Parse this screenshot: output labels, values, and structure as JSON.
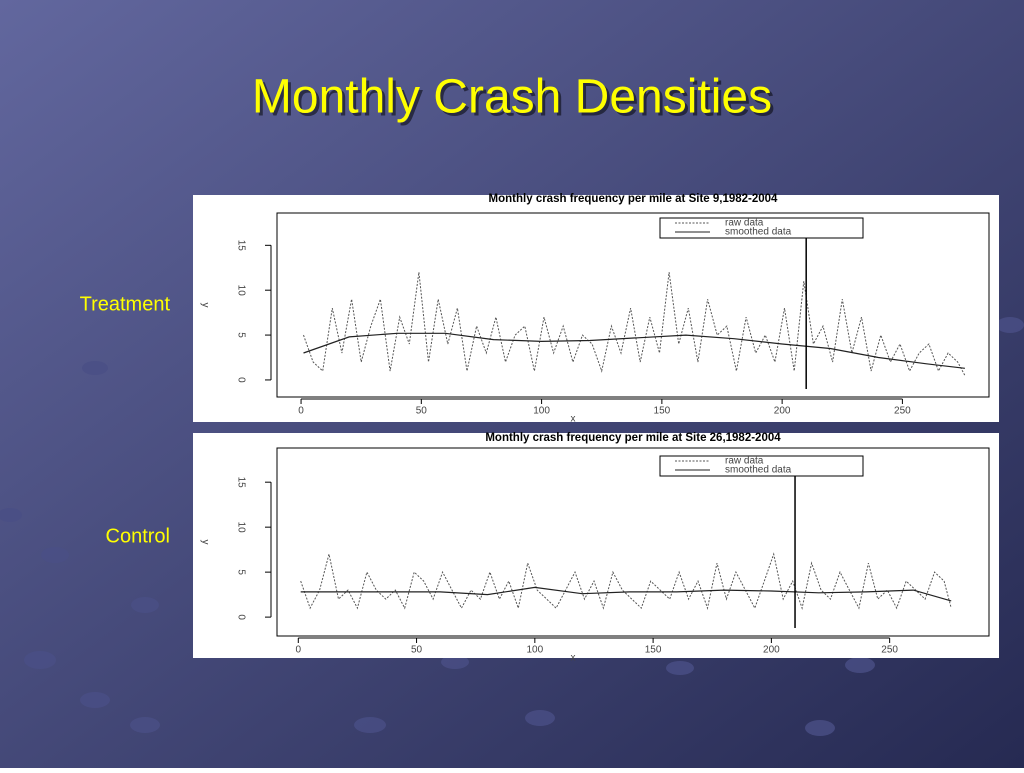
{
  "title": "Monthly Crash Densities",
  "chart_data": [
    {
      "type": "line",
      "panel_label": "Treatment",
      "title": "Monthly crash frequency per mile at Site 9,1982-2004",
      "xlabel": "x",
      "ylabel": "y",
      "xlim": [
        -10,
        286
      ],
      "ylim": [
        -1.9,
        18.6
      ],
      "xticks": [
        0,
        50,
        100,
        150,
        200,
        250
      ],
      "yticks": [
        0,
        5,
        10,
        15
      ],
      "vline": 210,
      "legend": "top-right",
      "series": [
        {
          "name": "raw data",
          "color": "#555555",
          "dash": true,
          "x": [
            1,
            5,
            9,
            13,
            17,
            21,
            25,
            29,
            33,
            37,
            41,
            45,
            49,
            53,
            57,
            61,
            65,
            69,
            73,
            77,
            81,
            85,
            89,
            93,
            97,
            101,
            105,
            109,
            113,
            117,
            121,
            125,
            129,
            133,
            137,
            141,
            145,
            149,
            153,
            157,
            161,
            165,
            169,
            173,
            177,
            181,
            185,
            189,
            193,
            197,
            201,
            205,
            209,
            213,
            217,
            221,
            225,
            229,
            233,
            237,
            241,
            245,
            249,
            253,
            257,
            261,
            265,
            269,
            273,
            276
          ],
          "values": [
            5,
            2,
            1,
            8,
            3,
            9,
            2,
            6,
            9,
            1,
            7,
            4,
            12,
            2,
            9,
            4,
            8,
            1,
            6,
            3,
            7,
            2,
            5,
            6,
            1,
            7,
            3,
            6,
            2,
            5,
            4,
            1,
            6,
            3,
            8,
            2,
            7,
            3,
            12,
            4,
            8,
            2,
            9,
            5,
            6,
            1,
            7,
            3,
            5,
            2,
            8,
            1,
            11,
            4,
            6,
            2,
            9,
            3,
            7,
            1,
            5,
            2,
            4,
            1,
            3,
            4,
            1,
            3,
            2,
            0.5
          ]
        },
        {
          "name": "smoothed data",
          "color": "#222222",
          "dash": false,
          "x": [
            1,
            20,
            40,
            60,
            80,
            100,
            120,
            140,
            160,
            180,
            200,
            220,
            240,
            260,
            276
          ],
          "values": [
            3,
            4.8,
            5.2,
            5.2,
            4.5,
            4.3,
            4.4,
            4.7,
            5,
            4.6,
            4,
            3.5,
            2.5,
            1.8,
            1.3
          ]
        }
      ]
    },
    {
      "type": "line",
      "panel_label": "Control",
      "title": "Monthly crash frequency per mile at Site 26,1982-2004",
      "xlabel": "x",
      "ylabel": "y",
      "xlim": [
        -9,
        292
      ],
      "ylim": [
        -2.1,
        18.8
      ],
      "xticks": [
        0,
        50,
        100,
        150,
        200,
        250
      ],
      "yticks": [
        0,
        5,
        10,
        15
      ],
      "vline": 210,
      "legend": "top-right",
      "series": [
        {
          "name": "raw data",
          "color": "#555555",
          "dash": true,
          "x": [
            1,
            5,
            9,
            13,
            17,
            21,
            25,
            29,
            33,
            37,
            41,
            45,
            49,
            53,
            57,
            61,
            65,
            69,
            73,
            77,
            81,
            85,
            89,
            93,
            97,
            101,
            105,
            109,
            113,
            117,
            121,
            125,
            129,
            133,
            137,
            141,
            145,
            149,
            153,
            157,
            161,
            165,
            169,
            173,
            177,
            181,
            185,
            189,
            193,
            197,
            201,
            205,
            209,
            213,
            217,
            221,
            225,
            229,
            233,
            237,
            241,
            245,
            249,
            253,
            257,
            261,
            265,
            269,
            273,
            276
          ],
          "values": [
            4,
            1,
            3,
            7,
            2,
            3,
            1,
            5,
            3,
            2,
            3,
            1,
            5,
            4,
            2,
            5,
            3,
            1,
            3,
            2,
            5,
            2,
            4,
            1,
            6,
            3,
            2,
            1,
            3,
            5,
            2,
            4,
            1,
            5,
            3,
            2,
            1,
            4,
            3,
            2,
            5,
            2,
            4,
            1,
            6,
            2,
            5,
            3,
            1,
            4,
            7,
            2,
            4,
            1,
            6,
            3,
            2,
            5,
            3,
            1,
            6,
            2,
            3,
            1,
            4,
            3,
            2,
            5,
            4,
            1
          ]
        },
        {
          "name": "smoothed data",
          "color": "#222222",
          "dash": false,
          "x": [
            1,
            20,
            40,
            60,
            80,
            100,
            120,
            140,
            160,
            180,
            200,
            220,
            240,
            260,
            276
          ],
          "values": [
            2.8,
            2.8,
            2.8,
            2.8,
            2.5,
            3.3,
            2.6,
            2.8,
            2.8,
            3,
            2.9,
            2.7,
            2.8,
            3,
            1.8
          ]
        }
      ]
    }
  ]
}
